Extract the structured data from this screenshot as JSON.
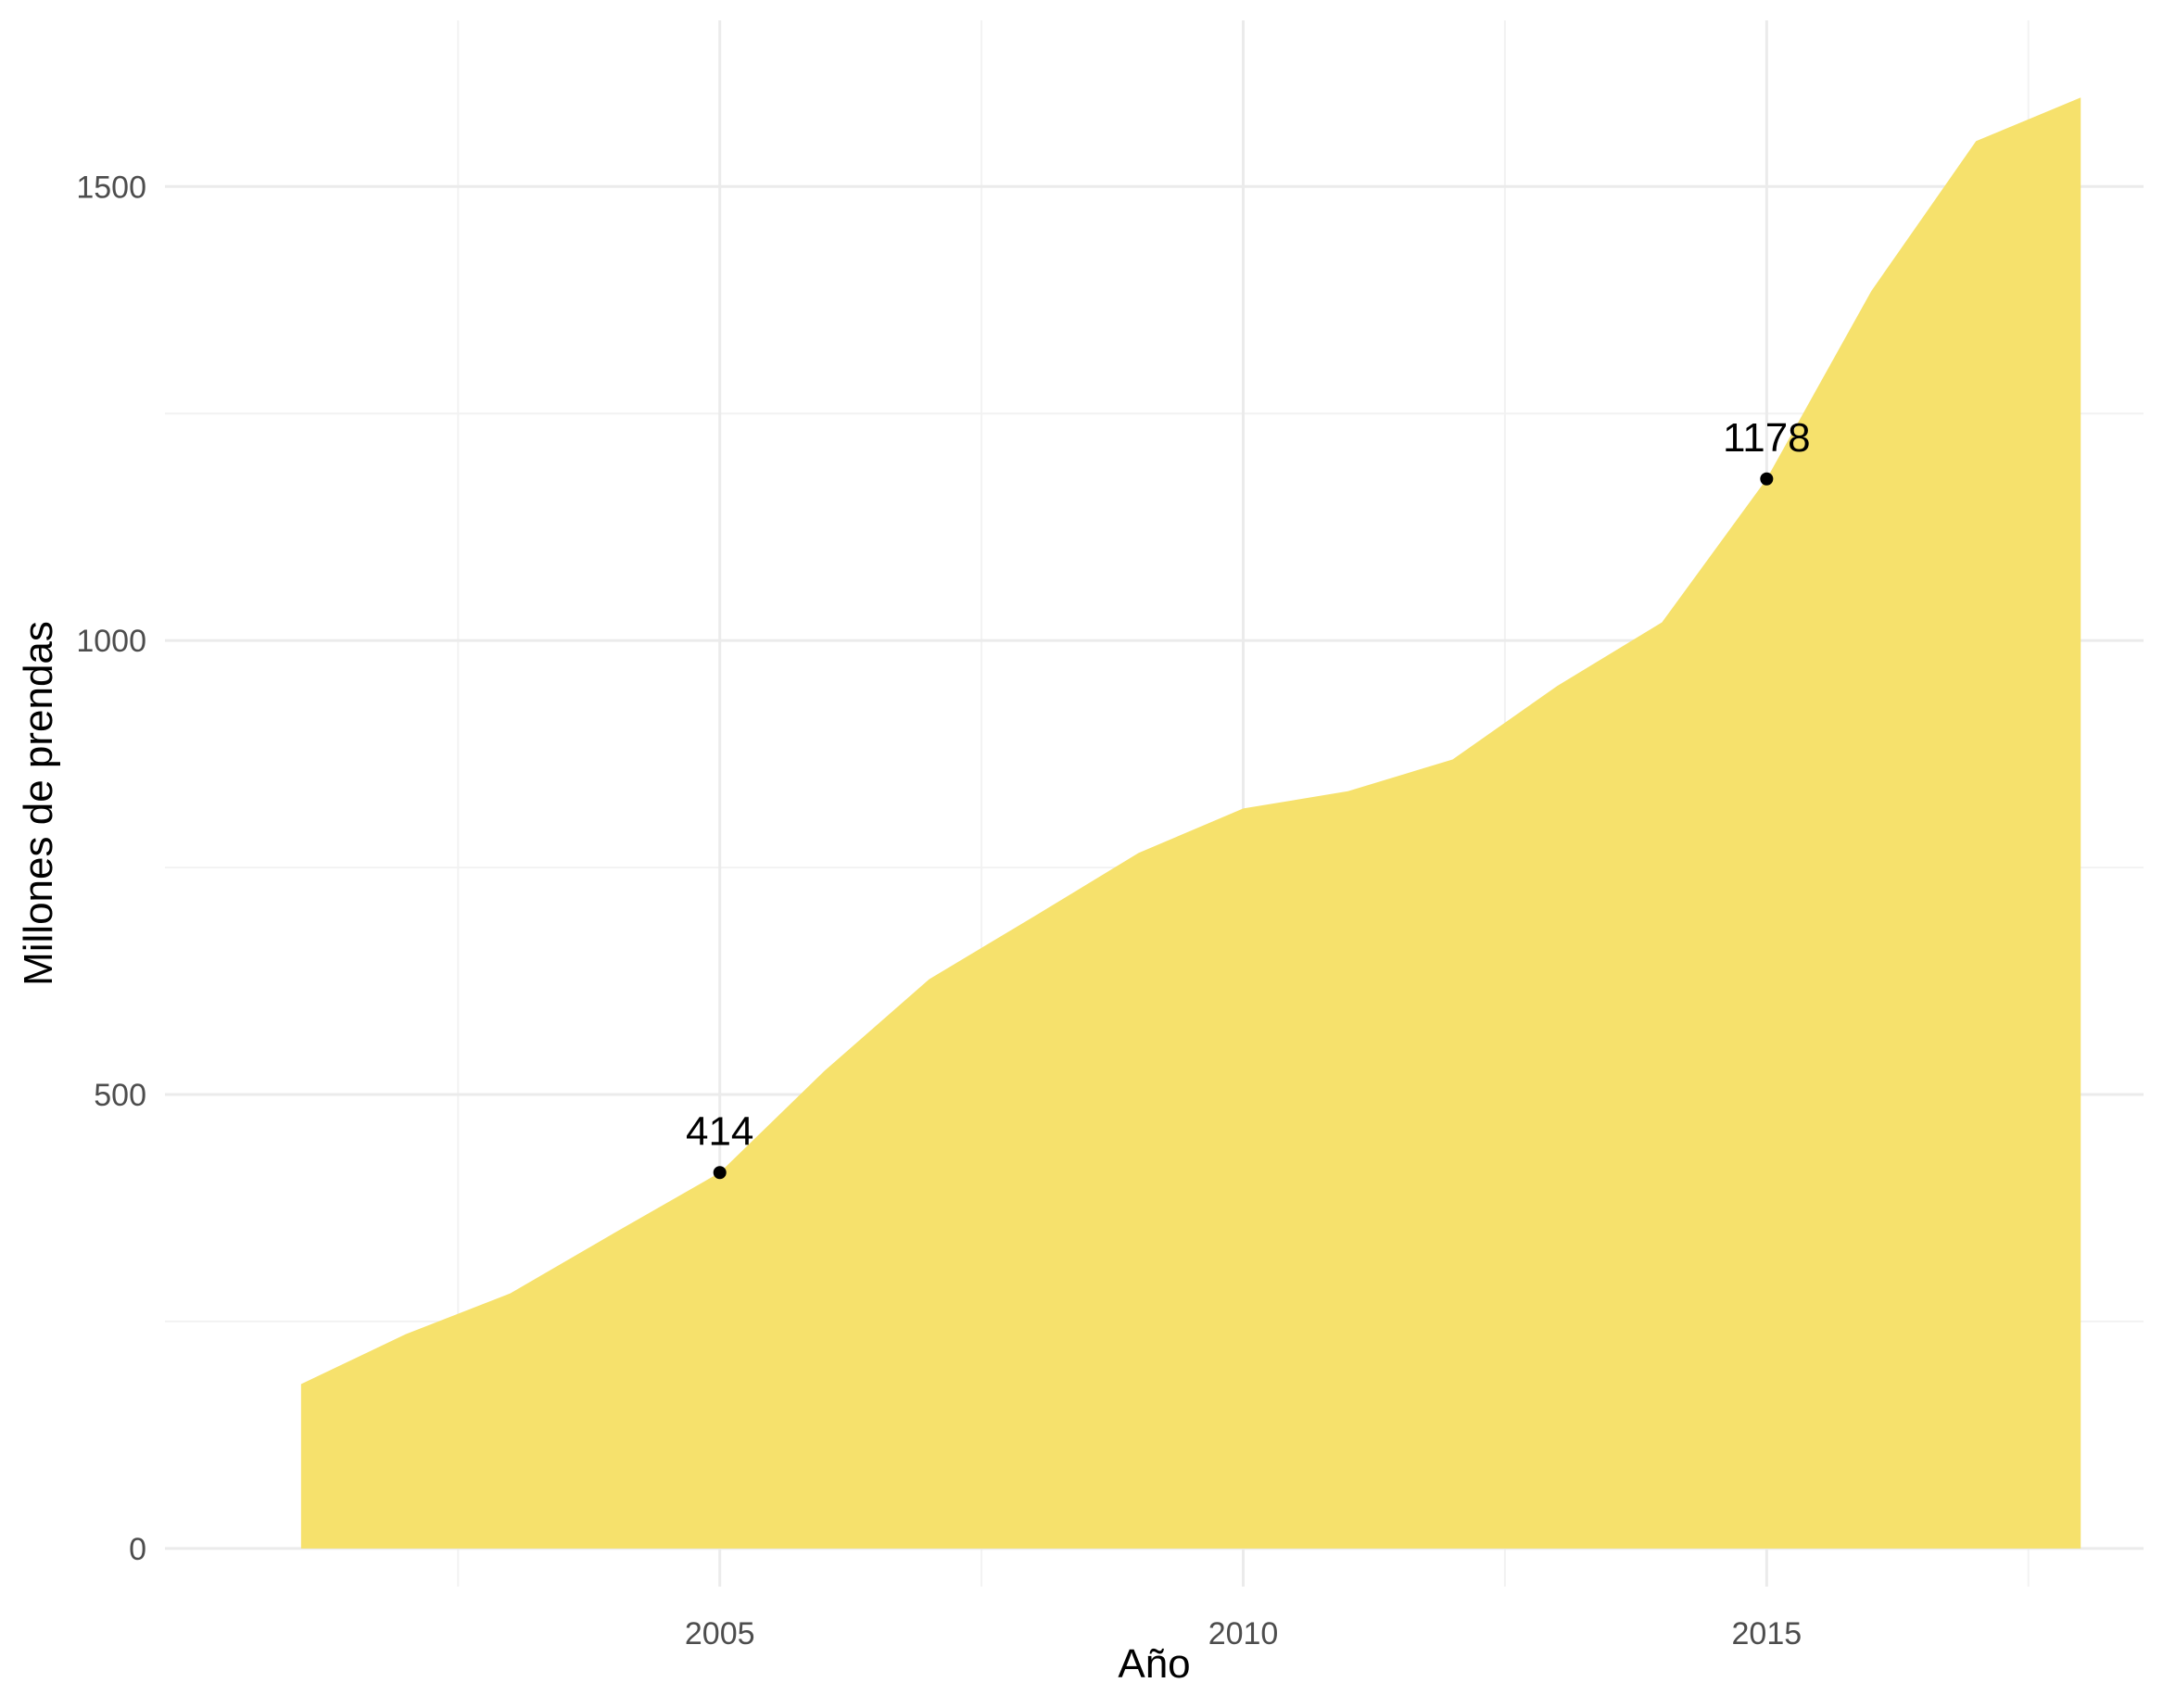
{
  "chart_data": {
    "type": "area",
    "title": "",
    "xlabel": "Año",
    "ylabel": "Millones de prendas",
    "x": [
      2001,
      2002,
      2003,
      2004,
      2005,
      2006,
      2007,
      2008,
      2009,
      2010,
      2011,
      2012,
      2013,
      2014,
      2015,
      2016,
      2017,
      2018
    ],
    "series": [
      {
        "values": [
          181,
          236,
          281,
          348,
          414,
          526,
          627,
          696,
          766,
          815,
          834,
          869,
          950,
          1020,
          1178,
          1385,
          1550,
          1598
        ]
      }
    ],
    "xlim": [
      1999.7,
      2018.6
    ],
    "ylim": [
      -42,
      1683
    ],
    "x_ticks": [
      2005,
      2010,
      2015
    ],
    "x_tick_labels": [
      "2005",
      "2010",
      "2015"
    ],
    "x_minor_ticks": [
      2002.5,
      2007.5,
      2012.5,
      2017.5
    ],
    "y_ticks": [
      0,
      500,
      1000,
      1500
    ],
    "y_tick_labels": [
      "0",
      "500",
      "1000",
      "1500"
    ],
    "y_minor_ticks": [
      250,
      750,
      1250
    ],
    "grid": true,
    "legend": "none",
    "annotations": [
      {
        "x": 2005,
        "y": 414,
        "label": "414"
      },
      {
        "x": 2015,
        "y": 1178,
        "label": "1178"
      }
    ],
    "colors": {
      "fill": "#f6e16c",
      "grid_major": "#ebebeb",
      "grid_minor": "#f2f2f2",
      "point": "#000000",
      "tick_text": "#4d4d4d",
      "title_text": "#000000"
    }
  }
}
